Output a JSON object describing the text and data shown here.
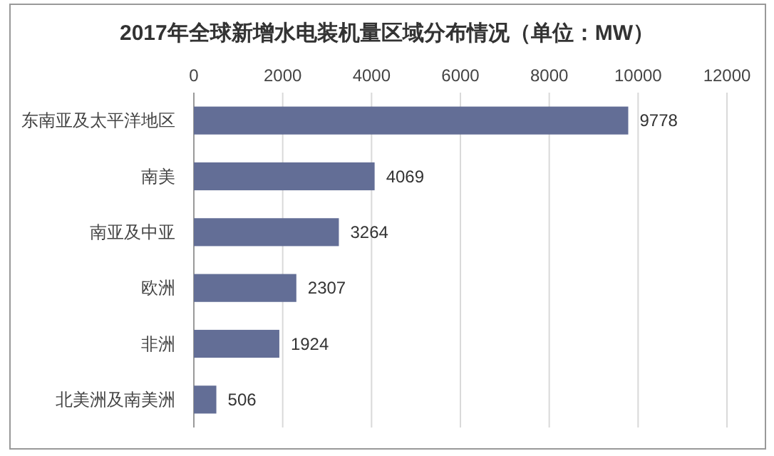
{
  "chart_data": {
    "type": "bar",
    "orientation": "horizontal",
    "title": "2017年全球新增水电装机量区域分布情况（单位：MW）",
    "categories": [
      "东南亚及太平洋地区",
      "南美",
      "南亚及中亚",
      "欧洲",
      "非洲",
      "北美洲及南美洲"
    ],
    "values": [
      9778,
      4069,
      3264,
      2307,
      1924,
      506
    ],
    "color": "#636e96",
    "xlim": [
      0,
      12000
    ],
    "xticks": [
      0,
      2000,
      4000,
      6000,
      8000,
      10000,
      12000
    ],
    "grid": "x",
    "data_labels": true
  }
}
